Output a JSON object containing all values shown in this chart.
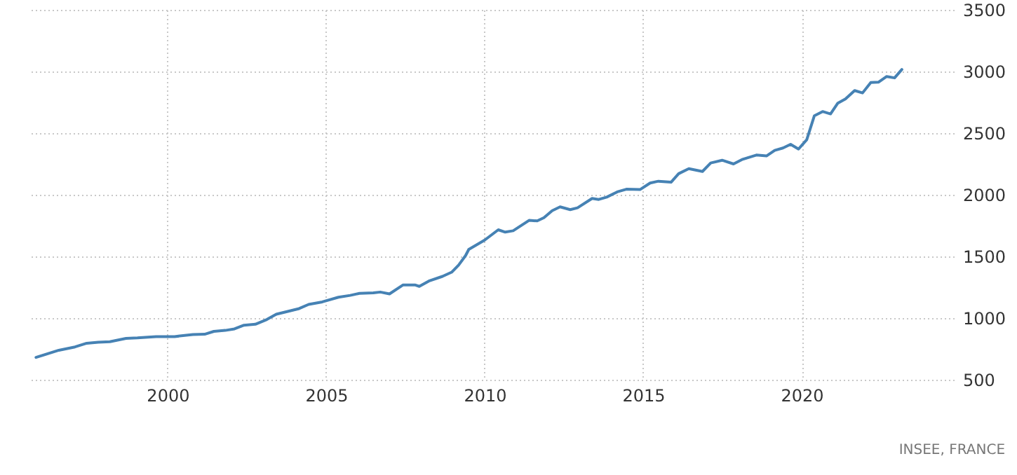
{
  "chart_data": {
    "type": "line",
    "x": [
      1995.85,
      1996.57,
      1997.08,
      1997.45,
      1997.81,
      1998.18,
      1998.69,
      1999.05,
      1999.64,
      2000.22,
      2000.8,
      2001.17,
      2001.46,
      2001.82,
      2002.11,
      2002.41,
      2002.77,
      2003.13,
      2003.43,
      2003.86,
      2004.15,
      2004.45,
      2004.88,
      2005.39,
      2005.76,
      2006.05,
      2006.49,
      2006.71,
      2007.0,
      2007.43,
      2007.8,
      2007.94,
      2008.24,
      2008.67,
      2008.96,
      2009.18,
      2009.4,
      2009.5,
      2010.0,
      2010.43,
      2010.65,
      2010.9,
      2011.4,
      2011.66,
      2011.87,
      2012.13,
      2012.38,
      2012.7,
      2012.93,
      2013.39,
      2013.6,
      2013.85,
      2014.18,
      2014.47,
      2014.9,
      2015.22,
      2015.48,
      2015.88,
      2016.12,
      2016.44,
      2016.87,
      2017.13,
      2017.49,
      2017.85,
      2018.14,
      2018.57,
      2018.89,
      2019.15,
      2019.41,
      2019.65,
      2019.9,
      2020.16,
      2020.4,
      2020.66,
      2020.91,
      2021.14,
      2021.38,
      2021.67,
      2021.92,
      2022.18,
      2022.42,
      2022.68,
      2022.93,
      2023.16
    ],
    "series": [
      {
        "color": "#4682b4",
        "values": [
          681,
          739,
          766,
          796,
          804,
          808,
          835,
          839,
          850,
          850,
          866,
          869,
          892,
          900,
          912,
          942,
          950,
          988,
          1031,
          1058,
          1077,
          1111,
          1131,
          1169,
          1184,
          1200,
          1204,
          1211,
          1196,
          1269,
          1269,
          1257,
          1300,
          1338,
          1372,
          1430,
          1507,
          1557,
          1632,
          1716,
          1697,
          1708,
          1792,
          1788,
          1814,
          1871,
          1902,
          1879,
          1894,
          1970,
          1962,
          1981,
          2023,
          2045,
          2042,
          2095,
          2110,
          2102,
          2171,
          2212,
          2189,
          2258,
          2280,
          2250,
          2288,
          2322,
          2315,
          2360,
          2379,
          2409,
          2371,
          2447,
          2641,
          2675,
          2656,
          2743,
          2777,
          2845,
          2826,
          2910,
          2913,
          2959,
          2948,
          3016
        ]
      }
    ],
    "xlim": [
      1995.6,
      2024.8
    ],
    "xticks": [
      2000,
      2005,
      2010,
      2015,
      2020
    ],
    "ylim": [
      500,
      3500
    ],
    "yticks": [
      500,
      1000,
      1500,
      2000,
      2500,
      3000,
      3500
    ],
    "grid": true,
    "marker": "none",
    "line_style": "solid",
    "annotations": [
      "INSEE, FRANCE"
    ]
  }
}
